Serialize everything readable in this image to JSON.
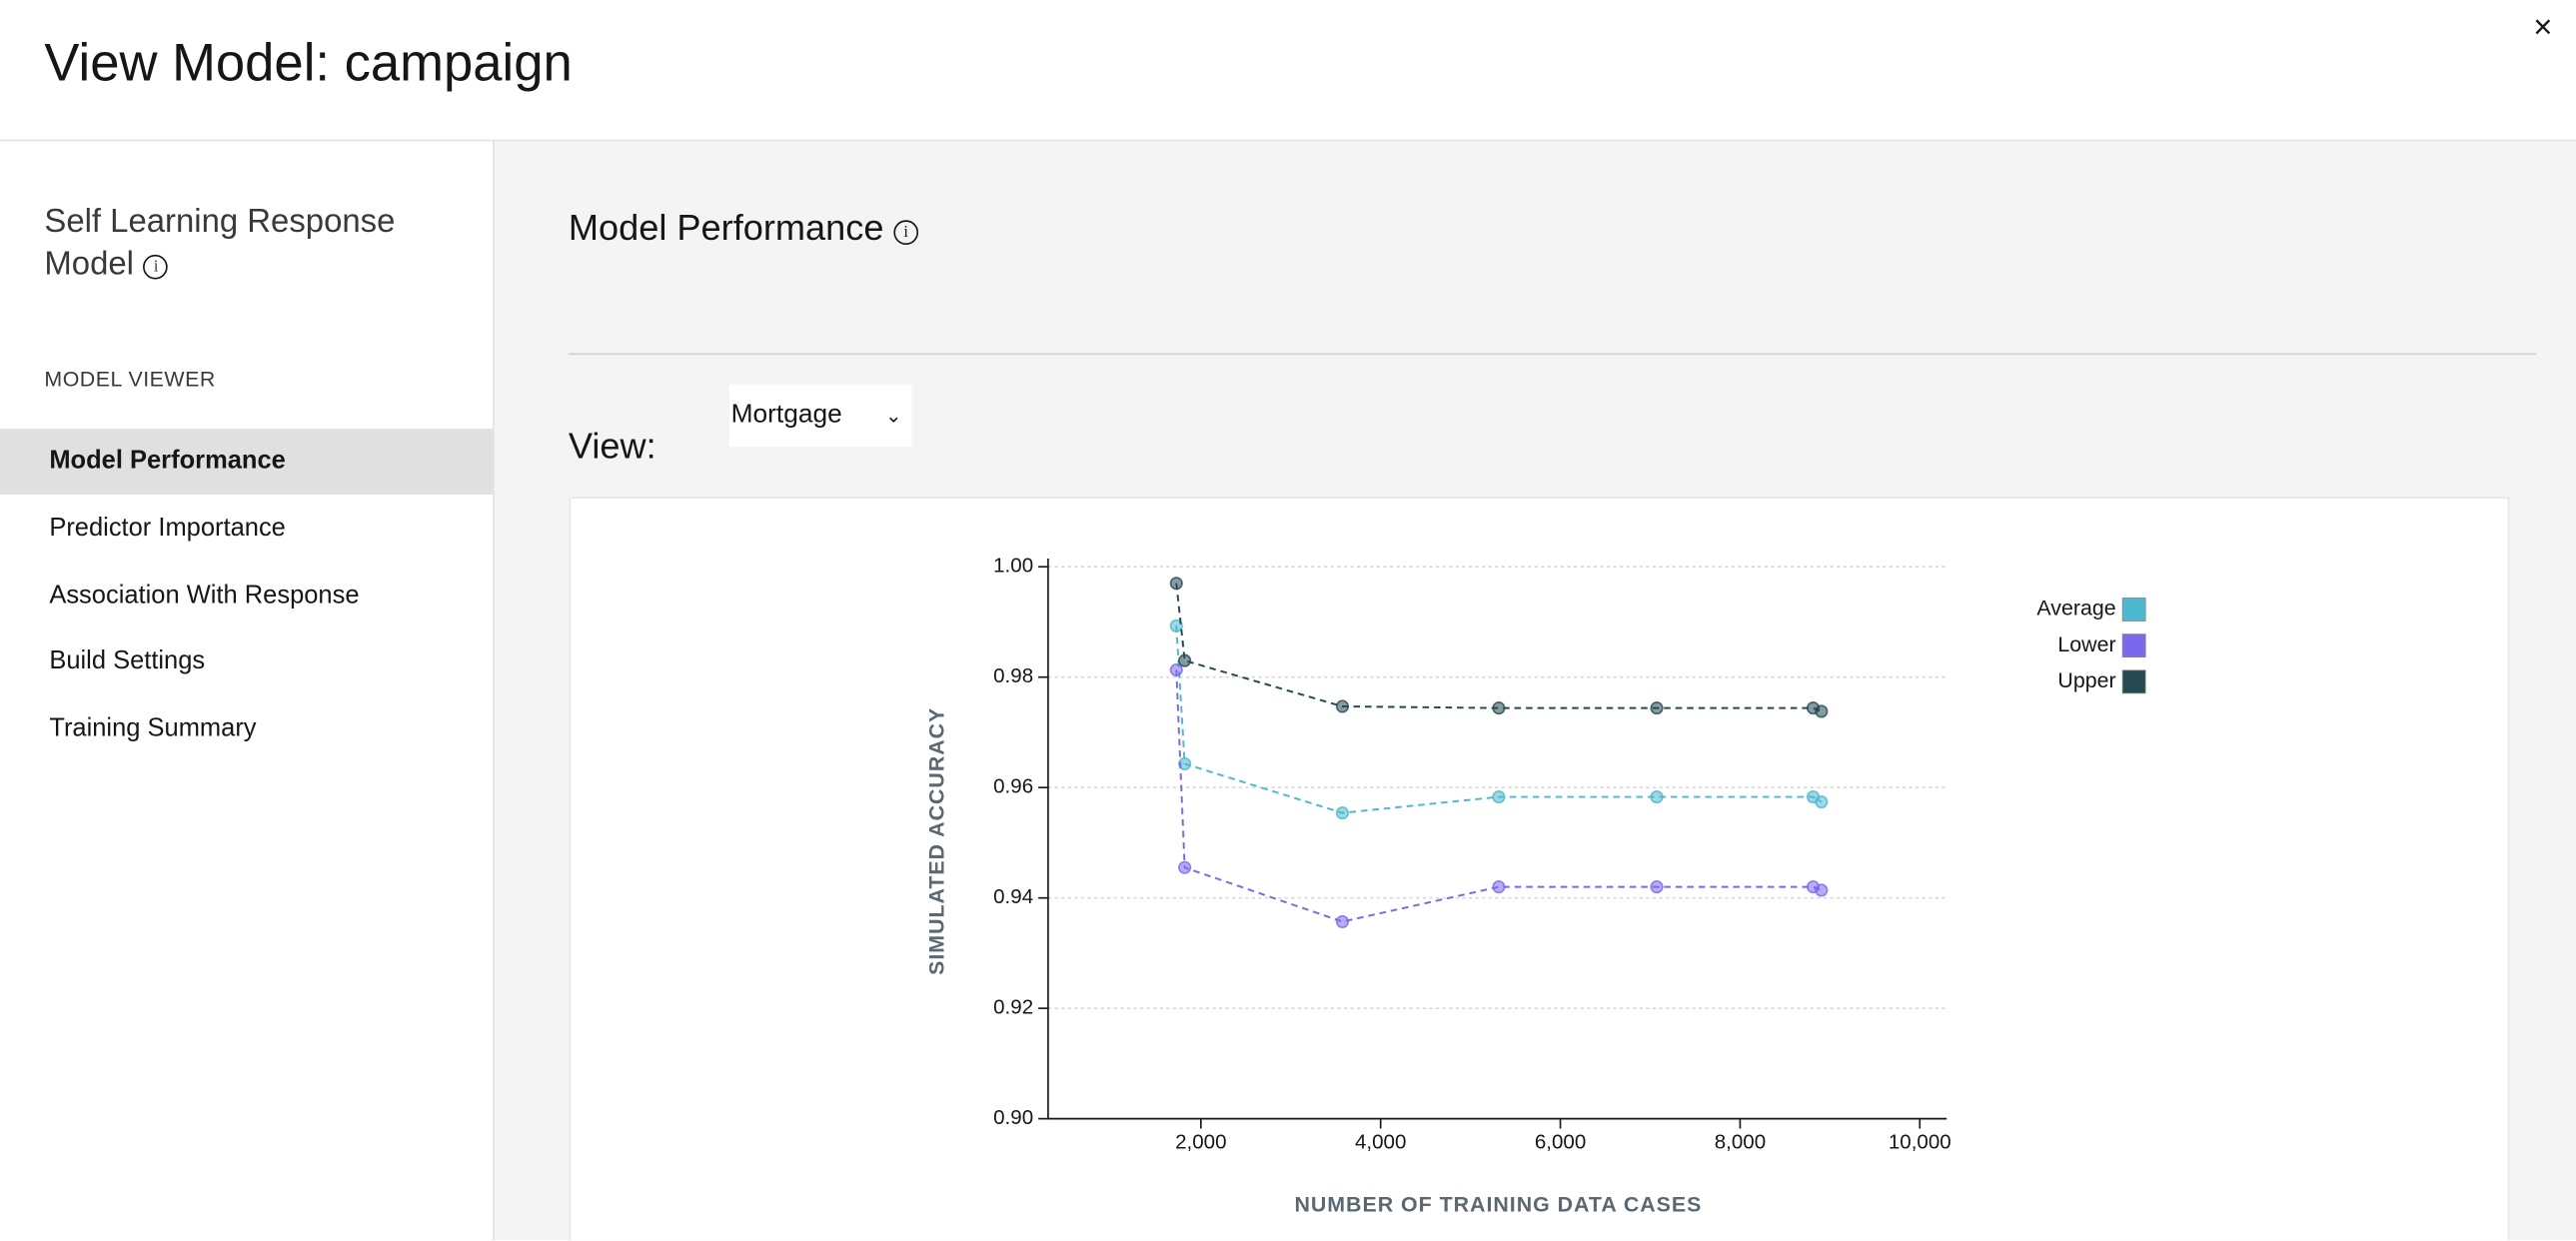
{
  "header": {
    "title": "View Model: campaign",
    "close": "×"
  },
  "sidebar": {
    "title": "Self Learning Response Model",
    "section": "MODEL VIEWER",
    "items": [
      "Model Performance",
      "Predictor Importance",
      "Association With Response",
      "Build Settings",
      "Training Summary"
    ]
  },
  "main": {
    "title": "Model Performance",
    "view_label": "View:",
    "select_value": "Mortgage"
  },
  "chart_data": {
    "type": "line",
    "x_label": "NUMBER OF TRAINING DATA CASES",
    "y_label": "SIMULATED ACCURACY",
    "xlim": [
      300,
      10300
    ],
    "ylim": [
      0.9,
      1.0
    ],
    "xticks": [
      {
        "value": 2000,
        "label": "2,000"
      },
      {
        "value": 4000,
        "label": "4,000"
      },
      {
        "value": 6000,
        "label": "6,000"
      },
      {
        "value": 8000,
        "label": "8,000"
      },
      {
        "value": 10000,
        "label": "10,000"
      }
    ],
    "yticks": [
      {
        "value": 0.9,
        "label": "0.90"
      },
      0.92,
      0.94,
      0.96,
      0.98,
      {
        "value": 1,
        "label": "1.00"
      }
    ],
    "grid": true,
    "legend": "top-right",
    "x": [
      1727,
      1820,
      3575,
      5315,
      7073,
      8813,
      8905
    ],
    "series": [
      {
        "name": "Average",
        "color": "#4db8d1",
        "values": [
          0.9893,
          0.9643,
          0.9554,
          0.9583,
          0.9583,
          0.9583,
          0.9574
        ]
      },
      {
        "name": "Lower",
        "color": "#7b68ee",
        "values": [
          0.9813,
          0.9455,
          0.9357,
          0.942,
          0.942,
          0.942,
          0.9414
        ]
      },
      {
        "name": "Upper",
        "color": "#264a52",
        "values": [
          0.997,
          0.983,
          0.9747,
          0.9744,
          0.9744,
          0.9744,
          0.9738
        ]
      }
    ]
  }
}
